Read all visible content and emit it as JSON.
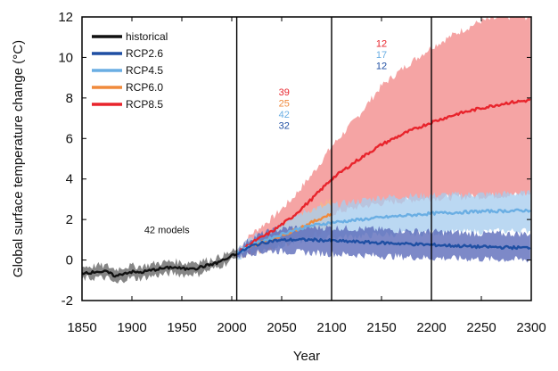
{
  "chart_data": {
    "type": "line",
    "title": "",
    "xlabel": "Year",
    "ylabel": "Global surface temperature change (°C)",
    "xlim": [
      1850,
      2300
    ],
    "ylim": [
      -2,
      12
    ],
    "xticks": [
      1850,
      1900,
      1950,
      2000,
      2050,
      2100,
      2150,
      2200,
      2250,
      2300
    ],
    "yticks": [
      -2,
      0,
      2,
      4,
      6,
      8,
      10,
      12
    ],
    "grid": false,
    "legend_placement": "top-left",
    "vertical_lines": [
      2005,
      2100,
      2200
    ],
    "series": [
      {
        "name": "historical",
        "color": "#111111",
        "band_color": "#808080",
        "x": [
          1850,
          1855,
          1860,
          1865,
          1870,
          1875,
          1880,
          1885,
          1890,
          1895,
          1900,
          1905,
          1910,
          1915,
          1920,
          1925,
          1930,
          1935,
          1940,
          1945,
          1950,
          1955,
          1960,
          1965,
          1970,
          1975,
          1980,
          1985,
          1990,
          1995,
          2000,
          2005
        ],
        "values": [
          -0.65,
          -0.6,
          -0.62,
          -0.55,
          -0.6,
          -0.58,
          -0.72,
          -0.8,
          -0.68,
          -0.62,
          -0.58,
          -0.62,
          -0.6,
          -0.55,
          -0.5,
          -0.45,
          -0.42,
          -0.4,
          -0.35,
          -0.38,
          -0.42,
          -0.45,
          -0.35,
          -0.42,
          -0.32,
          -0.28,
          -0.2,
          -0.15,
          -0.02,
          0.05,
          0.2,
          0.3
        ],
        "lower": [
          -0.95,
          -0.9,
          -0.92,
          -0.85,
          -0.9,
          -0.88,
          -1.05,
          -1.2,
          -1.0,
          -0.92,
          -0.88,
          -0.92,
          -0.9,
          -0.85,
          -0.8,
          -0.75,
          -0.72,
          -0.7,
          -0.65,
          -0.68,
          -0.72,
          -0.75,
          -0.65,
          -0.75,
          -0.6,
          -0.55,
          -0.45,
          -0.4,
          -0.25,
          -0.15,
          0.0,
          0.1
        ],
        "upper": [
          -0.35,
          -0.3,
          -0.32,
          -0.25,
          -0.3,
          -0.28,
          -0.4,
          -0.45,
          -0.35,
          -0.32,
          -0.28,
          -0.32,
          -0.3,
          -0.25,
          -0.2,
          -0.15,
          -0.12,
          -0.1,
          -0.05,
          -0.08,
          -0.12,
          -0.15,
          -0.05,
          -0.1,
          -0.02,
          0.0,
          0.05,
          0.1,
          0.2,
          0.3,
          0.4,
          0.5
        ]
      },
      {
        "name": "RCP2.6",
        "color": "#1f4fa3",
        "band_color": "#5868b8",
        "x": [
          2005,
          2020,
          2040,
          2060,
          2080,
          2100,
          2150,
          2200,
          2250,
          2300
        ],
        "values": [
          0.3,
          0.7,
          0.95,
          1.0,
          1.0,
          0.95,
          0.85,
          0.75,
          0.65,
          0.6
        ],
        "lower": [
          0.1,
          0.35,
          0.45,
          0.4,
          0.35,
          0.3,
          0.2,
          0.1,
          0.05,
          0.0
        ],
        "upper": [
          0.5,
          1.1,
          1.45,
          1.6,
          1.6,
          1.6,
          1.5,
          1.4,
          1.3,
          1.3
        ]
      },
      {
        "name": "RCP4.5",
        "color": "#6aaee3",
        "band_color": "#a8cdee",
        "x": [
          2005,
          2020,
          2040,
          2060,
          2080,
          2100,
          2150,
          2200,
          2250,
          2300
        ],
        "values": [
          0.3,
          0.75,
          1.1,
          1.45,
          1.7,
          1.85,
          2.1,
          2.3,
          2.4,
          2.45
        ],
        "lower": [
          0.1,
          0.4,
          0.6,
          0.85,
          1.0,
          1.1,
          1.25,
          1.35,
          1.4,
          1.45
        ],
        "upper": [
          0.5,
          1.1,
          1.6,
          2.1,
          2.5,
          2.7,
          3.1,
          3.2,
          3.25,
          3.3
        ]
      },
      {
        "name": "RCP6.0",
        "color": "#f08a3c",
        "band_color": "#f5b98a",
        "x": [
          2005,
          2020,
          2040,
          2060,
          2080,
          2100
        ],
        "values": [
          0.3,
          0.7,
          1.05,
          1.4,
          1.85,
          2.3
        ],
        "lower": [
          0.1,
          0.4,
          0.6,
          0.9,
          1.2,
          1.5
        ],
        "upper": [
          0.5,
          1.0,
          1.5,
          1.95,
          2.5,
          3.0
        ]
      },
      {
        "name": "RCP8.5",
        "color": "#e8242c",
        "band_color": "#f28a8a",
        "x": [
          2005,
          2020,
          2040,
          2060,
          2080,
          2100,
          2125,
          2150,
          2175,
          2200,
          2225,
          2250,
          2275,
          2300
        ],
        "values": [
          0.3,
          0.85,
          1.4,
          2.1,
          3.0,
          4.0,
          4.9,
          5.7,
          6.3,
          6.8,
          7.2,
          7.5,
          7.75,
          7.9
        ],
        "lower": [
          0.1,
          0.45,
          0.8,
          1.25,
          1.75,
          2.3,
          2.6,
          2.8,
          2.95,
          3.05,
          3.1,
          3.15,
          3.2,
          3.25
        ],
        "upper": [
          0.5,
          1.3,
          2.05,
          3.0,
          4.2,
          5.6,
          7.0,
          8.6,
          9.6,
          10.5,
          11.2,
          11.8,
          12.0,
          12.0
        ]
      }
    ],
    "model_count_text": "42 models",
    "model_counts": [
      {
        "period": "2006-2100",
        "entries": [
          {
            "series": "RCP8.5",
            "text": "39",
            "color": "#e8242c"
          },
          {
            "series": "RCP6.0",
            "text": "25",
            "color": "#f08a3c"
          },
          {
            "series": "RCP4.5",
            "text": "42",
            "color": "#6aaee3"
          },
          {
            "series": "RCP2.6",
            "text": "32",
            "color": "#1f4fa3"
          }
        ]
      },
      {
        "period": "2100-2200",
        "entries": [
          {
            "series": "RCP8.5",
            "text": "12",
            "color": "#e8242c"
          },
          {
            "series": "RCP4.5",
            "text": "17",
            "color": "#6aaee3"
          },
          {
            "series": "RCP2.6",
            "text": "12",
            "color": "#1f4fa3"
          }
        ]
      }
    ]
  }
}
